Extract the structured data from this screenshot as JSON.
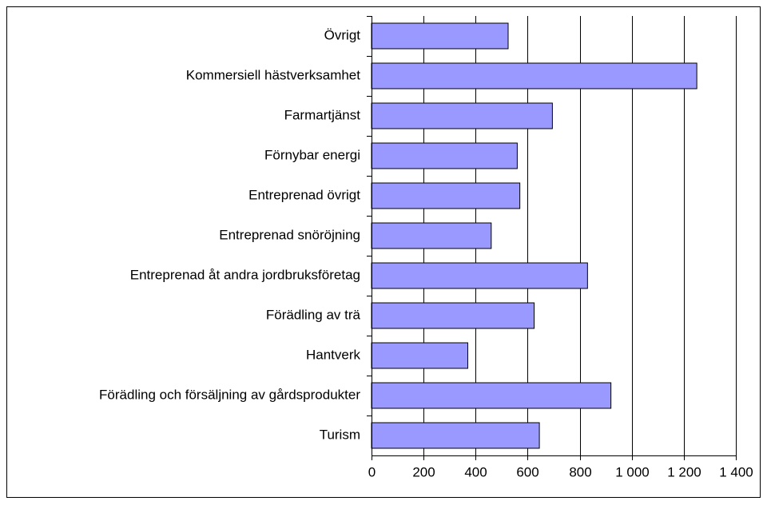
{
  "chart_data": {
    "type": "hbar",
    "categories": [
      "Övrigt",
      "Kommersiell hästverksamhet",
      "Farmartjänst",
      "Förnybar energi",
      "Entreprenad övrigt",
      "Entreprenad snöröjning",
      "Entreprenad åt andra jordbruksföretag",
      "Förädling av trä",
      "Hantverk",
      "Förädling och försäljning av gårdsprodukter",
      "Turism"
    ],
    "values": [
      525,
      1250,
      695,
      560,
      570,
      460,
      830,
      625,
      370,
      920,
      645
    ],
    "color": "#9999ff",
    "xlim": [
      0,
      1400
    ],
    "xticks": [
      0,
      200,
      400,
      600,
      800,
      {
        "value": 1000,
        "label": "1 000"
      },
      {
        "value": 1200,
        "label": "1 200"
      },
      {
        "value": 1400,
        "label": "1 400"
      }
    ],
    "grid": true
  }
}
